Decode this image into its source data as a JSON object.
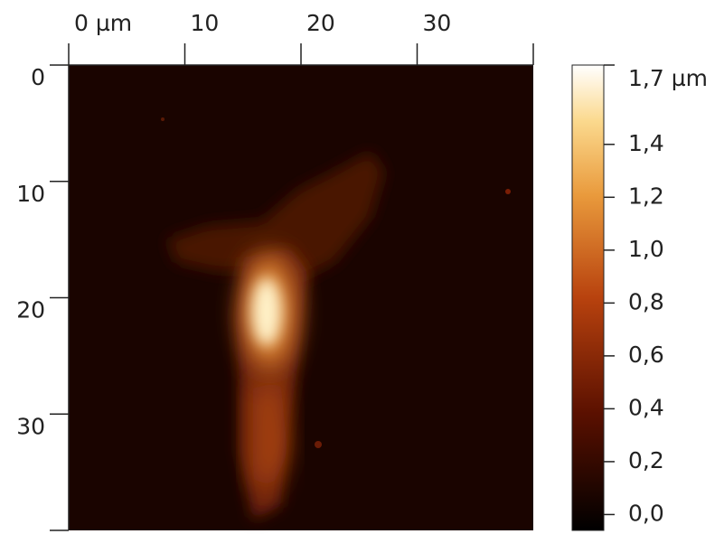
{
  "chart_data": {
    "type": "image",
    "xlim": [
      0,
      40
    ],
    "ylim": [
      0,
      40
    ],
    "xticks": [
      {
        "value": 0,
        "label": "0 µm"
      },
      10,
      20,
      30
    ],
    "yticks": [
      0,
      10,
      20,
      30
    ],
    "colorbar": {
      "lim": [
        -0.06,
        1.7
      ],
      "ticks": [
        {
          "value": 0,
          "label": "0,0"
        },
        {
          "value": 0.2,
          "label": "0,2"
        },
        {
          "value": 0.4,
          "label": "0,4"
        },
        {
          "value": 0.6,
          "label": "0,6"
        },
        {
          "value": 0.8,
          "label": "0,8"
        },
        {
          "value": 1.0,
          "label": "1,0"
        },
        {
          "value": 1.2,
          "label": "1,2"
        },
        {
          "value": 1.4,
          "label": "1,4"
        },
        {
          "value": 1.7,
          "label": "1,7 µm"
        }
      ]
    }
  }
}
